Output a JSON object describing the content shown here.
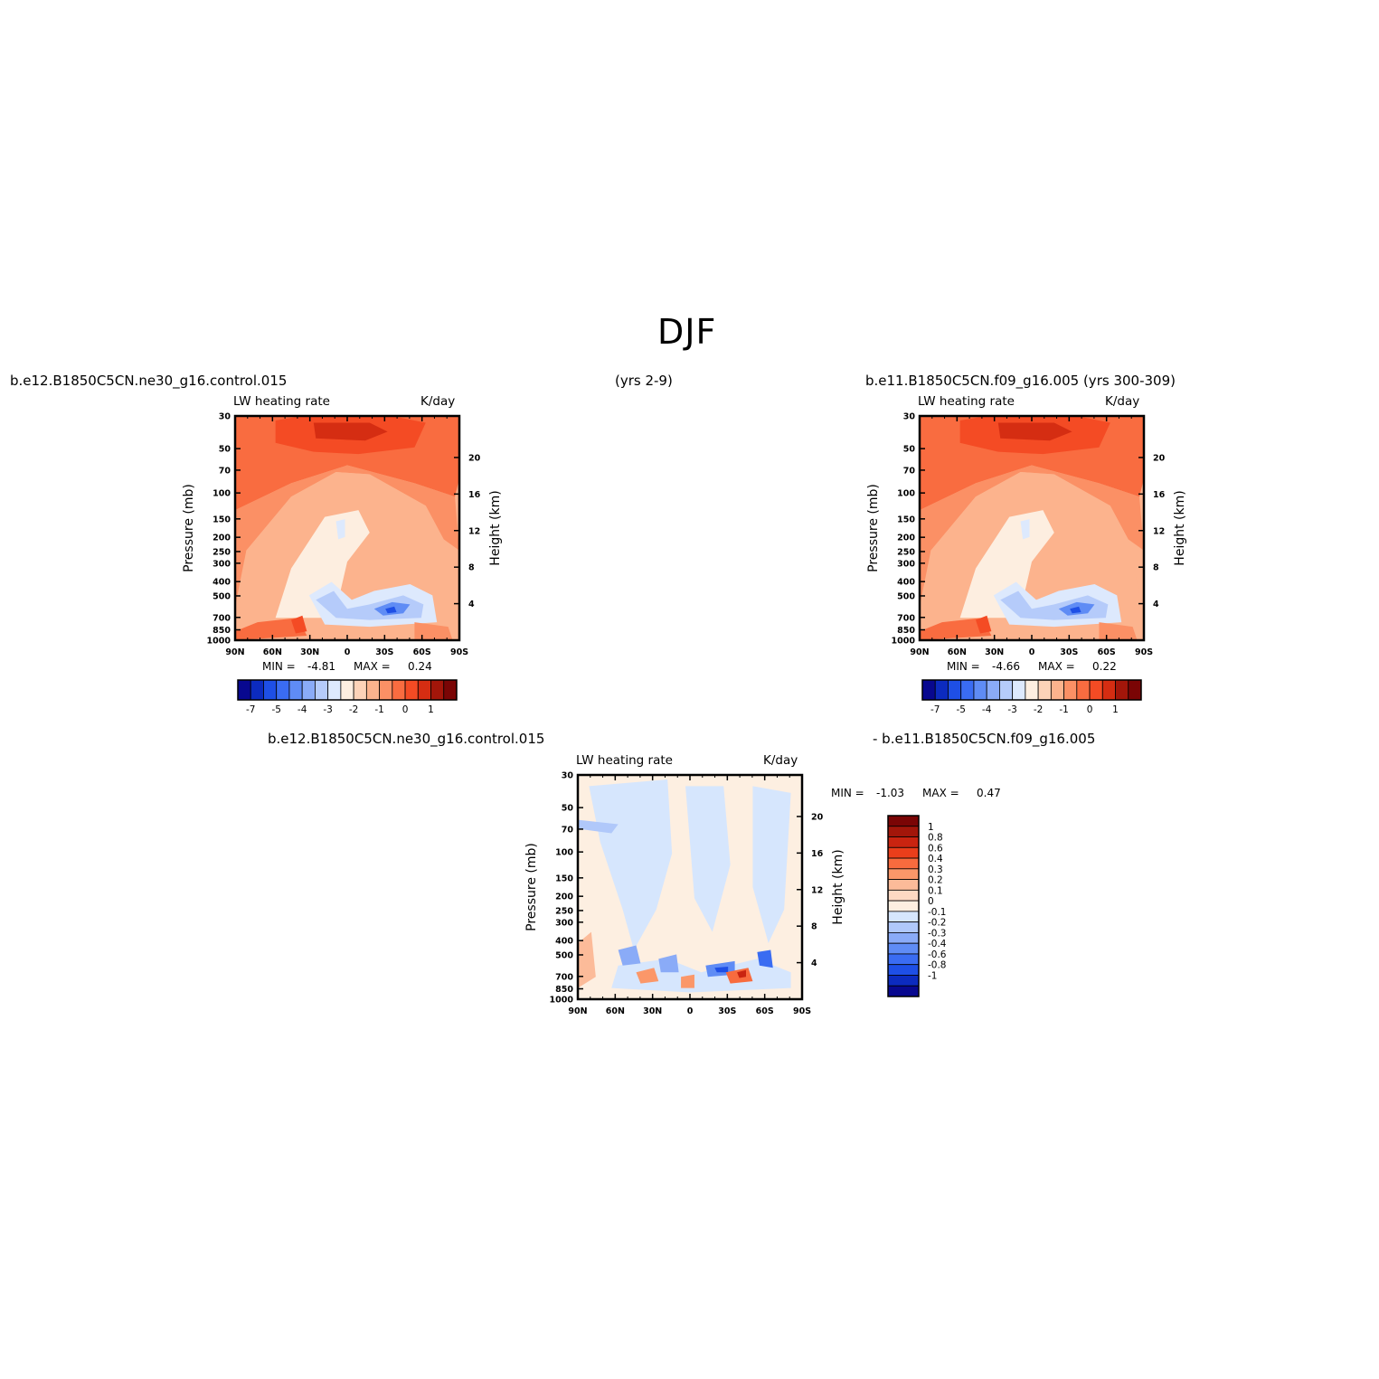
{
  "page": {
    "title": "DJF",
    "case1_label": "b.e12.B1850C5CN.ne30_g16.control.015",
    "years1_label": "(yrs 2-9)",
    "case2_label": "b.e11.B1850C5CN.f09_g16.005 (yrs 300-309)",
    "diff_case1_label": "b.e12.B1850C5CN.ne30_g16.control.015",
    "diff_case2_label": "- b.e11.B1850C5CN.f09_g16.005"
  },
  "colors": {
    "main_scale": [
      "#08088f",
      "#0c2bbf",
      "#1e4fe6",
      "#3a6cf2",
      "#5f8cf5",
      "#8aabf7",
      "#b5cbfa",
      "#dde9fd",
      "#fdeee0",
      "#fdd3b8",
      "#fcb38d",
      "#fb9065",
      "#f96c40",
      "#f44b24",
      "#d52d12",
      "#a3160a",
      "#7a0505"
    ],
    "diff_scale": [
      "#7a0505",
      "#a3160a",
      "#c92410",
      "#ea3e1b",
      "#f86b3e",
      "#fb9769",
      "#fcbb99",
      "#fdd9c3",
      "#fdefe1",
      "#d6e6fd",
      "#b0c8fa",
      "#8aabf7",
      "#5f8cf5",
      "#3a6cf2",
      "#1e4fe6",
      "#0c2bbf",
      "#08088f"
    ]
  },
  "chart_data": [
    {
      "type": "heatmap",
      "title_left": "LW heating rate",
      "title_right": "K/day",
      "ylabel": "Pressure (mb)",
      "ylabel_right": "Height (km)",
      "x_ticks": [
        "90N",
        "60N",
        "30N",
        "0",
        "30S",
        "60S",
        "90S"
      ],
      "y_ticks": [
        "30",
        "50",
        "70",
        "100",
        "150",
        "200",
        "250",
        "300",
        "400",
        "500",
        "700",
        "850",
        "1000"
      ],
      "y_right_ticks": [
        "20",
        "16",
        "12",
        "8",
        "4"
      ],
      "min_label": "MIN =",
      "min_value": "-4.81",
      "max_label": "MAX =",
      "max_value": "0.24",
      "colorbar_labels": [
        "-7",
        "-5",
        "-4",
        "-3",
        "-2",
        "-1",
        "0",
        "1"
      ],
      "grid": false
    },
    {
      "type": "heatmap",
      "title_left": "LW heating rate",
      "title_right": "K/day",
      "ylabel": "Pressure (mb)",
      "ylabel_right": "Height (km)",
      "x_ticks": [
        "90N",
        "60N",
        "30N",
        "0",
        "30S",
        "60S",
        "90S"
      ],
      "y_ticks": [
        "30",
        "50",
        "70",
        "100",
        "150",
        "200",
        "250",
        "300",
        "400",
        "500",
        "700",
        "850",
        "1000"
      ],
      "y_right_ticks": [
        "20",
        "16",
        "12",
        "8",
        "4"
      ],
      "min_label": "MIN =",
      "min_value": "-4.66",
      "max_label": "MAX =",
      "max_value": "0.22",
      "colorbar_labels": [
        "-7",
        "-5",
        "-4",
        "-3",
        "-2",
        "-1",
        "0",
        "1"
      ],
      "grid": false
    },
    {
      "type": "heatmap",
      "title_left": "LW heating rate",
      "title_right": "K/day",
      "ylabel": "Pressure (mb)",
      "ylabel_right": "Height (km)",
      "x_ticks": [
        "90N",
        "60N",
        "30N",
        "0",
        "30S",
        "60S",
        "90S"
      ],
      "y_ticks": [
        "30",
        "50",
        "70",
        "100",
        "150",
        "200",
        "250",
        "300",
        "400",
        "500",
        "700",
        "850",
        "1000"
      ],
      "y_right_ticks": [
        "20",
        "16",
        "12",
        "8",
        "4"
      ],
      "min_label": "MIN =",
      "min_value": "-1.03",
      "max_label": "MAX =",
      "max_value": "0.47",
      "colorbar_labels": [
        "1",
        "0.8",
        "0.6",
        "0.4",
        "0.3",
        "0.2",
        "0.1",
        "0",
        "-0.1",
        "-0.2",
        "-0.3",
        "-0.4",
        "-0.6",
        "-0.8",
        "-1"
      ],
      "grid": false
    }
  ]
}
